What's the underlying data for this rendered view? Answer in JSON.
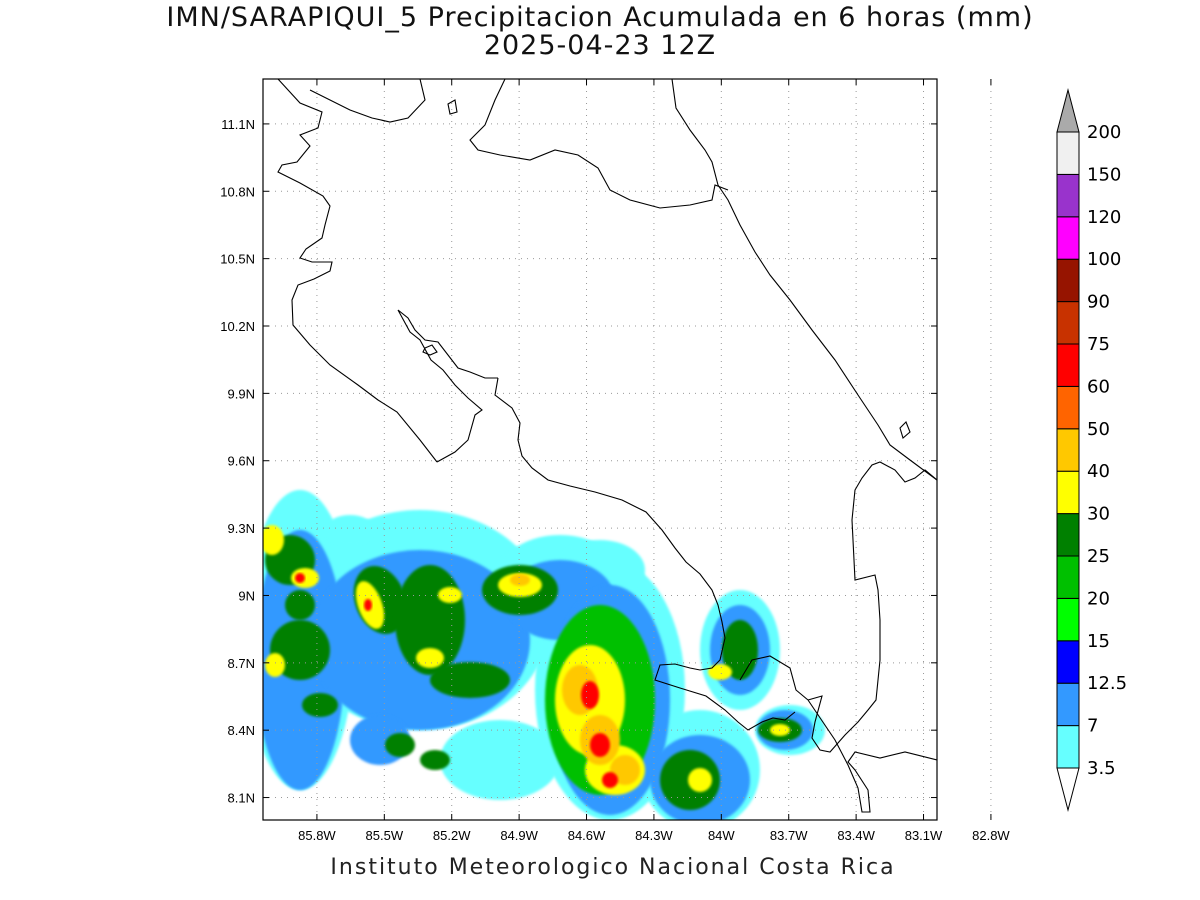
{
  "title": {
    "line1": "IMN/SARAPIQUI_5 Precipitacion Acumulada en 6 horas (mm)",
    "line2": "2025-04-23 12Z"
  },
  "footer": "Instituto Meteorologico Nacional Costa Rica",
  "axes": {
    "lon_ticks": [
      "85.8W",
      "85.5W",
      "85.2W",
      "84.9W",
      "84.6W",
      "84.3W",
      "84W",
      "83.7W",
      "83.4W",
      "83.1W",
      "82.8W"
    ],
    "lat_ticks": [
      "11.1N",
      "10.8N",
      "10.5N",
      "10.2N",
      "9.9N",
      "9.6N",
      "9.3N",
      "9N",
      "8.7N",
      "8.4N",
      "8.1N"
    ],
    "lon_range": [
      -86.04,
      -83.04
    ],
    "lat_range": [
      8.0,
      11.3
    ],
    "grid": true
  },
  "legend": {
    "levels": [
      "3.5",
      "7",
      "12.5",
      "15",
      "20",
      "25",
      "30",
      "40",
      "50",
      "60",
      "75",
      "90",
      "100",
      "120",
      "150",
      "200"
    ],
    "colors": [
      "#66ffff",
      "#3399ff",
      "#0000ff",
      "#00ff00",
      "#00c000",
      "#008000",
      "#ffff00",
      "#ffc800",
      "#ff6400",
      "#ff0000",
      "#c83200",
      "#961400",
      "#ff00ff",
      "#9933cc",
      "#f0f0f0",
      "#aaaaaa"
    ]
  }
}
